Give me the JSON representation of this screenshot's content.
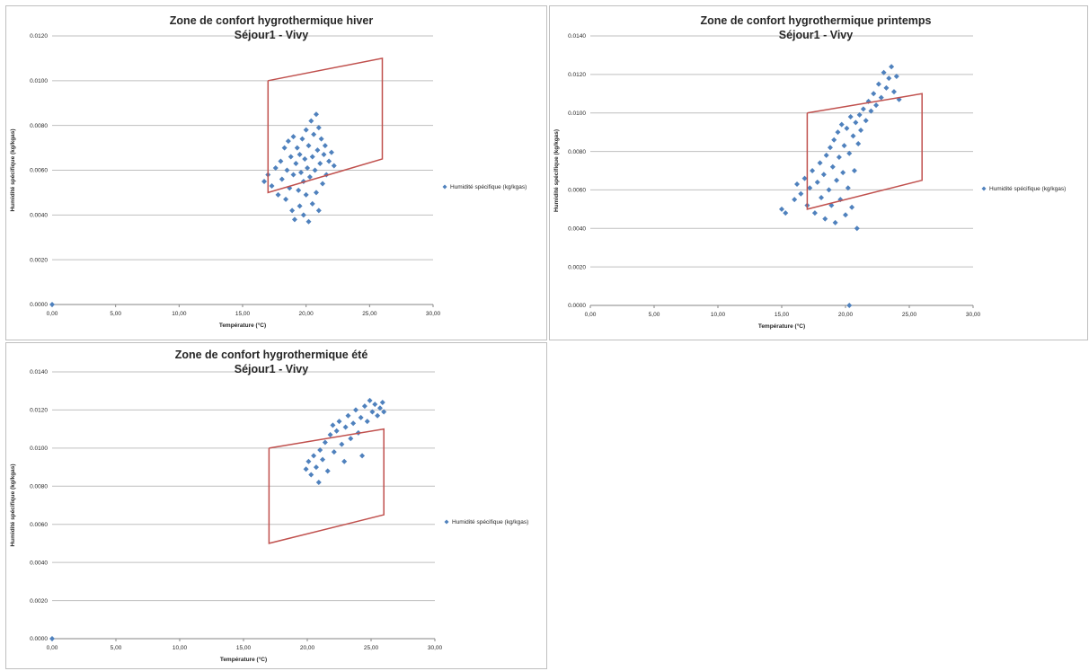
{
  "chart_data": [
    {
      "type": "scatter",
      "title": "Zone de confort hygrothermique hiver",
      "subtitle": "Séjour1 - Vivy",
      "xlabel": "Température (°C)",
      "ylabel": "Humidité spécifique (kg/kgas)",
      "xlim": [
        0,
        30
      ],
      "ylim": [
        0,
        0.012
      ],
      "x_ticks": [
        "0,00",
        "5,00",
        "10,00",
        "15,00",
        "20,00",
        "25,00",
        "30,00"
      ],
      "y_ticks": [
        "0.0000",
        "0.0020",
        "0.0040",
        "0.0060",
        "0.0080",
        "0.0100",
        "0.0120"
      ],
      "grid": true,
      "legend_position": "right",
      "series": [
        {
          "name": "Humidité spécifique (kg/kgas)",
          "color": "#4f81bd",
          "marker": "diamond",
          "points": [
            {
              "x": 0.0,
              "y": 0.0
            },
            {
              "x": 16.7,
              "y": 0.0055
            },
            {
              "x": 17.0,
              "y": 0.0058
            },
            {
              "x": 17.3,
              "y": 0.0053
            },
            {
              "x": 17.6,
              "y": 0.0061
            },
            {
              "x": 17.8,
              "y": 0.0049
            },
            {
              "x": 18.0,
              "y": 0.0064
            },
            {
              "x": 18.1,
              "y": 0.0056
            },
            {
              "x": 18.3,
              "y": 0.007
            },
            {
              "x": 18.4,
              "y": 0.0047
            },
            {
              "x": 18.5,
              "y": 0.006
            },
            {
              "x": 18.6,
              "y": 0.0073
            },
            {
              "x": 18.7,
              "y": 0.0052
            },
            {
              "x": 18.8,
              "y": 0.0066
            },
            {
              "x": 18.9,
              "y": 0.0042
            },
            {
              "x": 19.0,
              "y": 0.0058
            },
            {
              "x": 19.0,
              "y": 0.0075
            },
            {
              "x": 19.1,
              "y": 0.0038
            },
            {
              "x": 19.2,
              "y": 0.0063
            },
            {
              "x": 19.3,
              "y": 0.007
            },
            {
              "x": 19.4,
              "y": 0.0051
            },
            {
              "x": 19.5,
              "y": 0.0067
            },
            {
              "x": 19.5,
              "y": 0.0044
            },
            {
              "x": 19.6,
              "y": 0.0059
            },
            {
              "x": 19.7,
              "y": 0.0074
            },
            {
              "x": 19.8,
              "y": 0.0055
            },
            {
              "x": 19.8,
              "y": 0.004
            },
            {
              "x": 19.9,
              "y": 0.0065
            },
            {
              "x": 20.0,
              "y": 0.0078
            },
            {
              "x": 20.0,
              "y": 0.0049
            },
            {
              "x": 20.1,
              "y": 0.0061
            },
            {
              "x": 20.2,
              "y": 0.0071
            },
            {
              "x": 20.2,
              "y": 0.0037
            },
            {
              "x": 20.3,
              "y": 0.0057
            },
            {
              "x": 20.4,
              "y": 0.0082
            },
            {
              "x": 20.5,
              "y": 0.0066
            },
            {
              "x": 20.5,
              "y": 0.0045
            },
            {
              "x": 20.6,
              "y": 0.0076
            },
            {
              "x": 20.7,
              "y": 0.006
            },
            {
              "x": 20.8,
              "y": 0.0085
            },
            {
              "x": 20.8,
              "y": 0.005
            },
            {
              "x": 20.9,
              "y": 0.0069
            },
            {
              "x": 21.0,
              "y": 0.0079
            },
            {
              "x": 21.0,
              "y": 0.0042
            },
            {
              "x": 21.1,
              "y": 0.0063
            },
            {
              "x": 21.2,
              "y": 0.0074
            },
            {
              "x": 21.3,
              "y": 0.0054
            },
            {
              "x": 21.4,
              "y": 0.0067
            },
            {
              "x": 21.5,
              "y": 0.0071
            },
            {
              "x": 21.6,
              "y": 0.0058
            },
            {
              "x": 21.8,
              "y": 0.0064
            },
            {
              "x": 22.0,
              "y": 0.0068
            },
            {
              "x": 22.2,
              "y": 0.0062
            }
          ]
        },
        {
          "name": "",
          "color": "#c0504d",
          "type": "line",
          "points": [
            {
              "x": 17,
              "y": 0.01
            },
            {
              "x": 26,
              "y": 0.011
            },
            {
              "x": 26,
              "y": 0.0065
            },
            {
              "x": 17,
              "y": 0.005
            },
            {
              "x": 17,
              "y": 0.01
            }
          ]
        }
      ]
    },
    {
      "type": "scatter",
      "title": "Zone de confort hygrothermique printemps",
      "subtitle": "Séjour1 - Vivy",
      "xlabel": "Température (°C)",
      "ylabel": "Humidité spécifique (kg/kgas)",
      "xlim": [
        0,
        30
      ],
      "ylim": [
        0,
        0.014
      ],
      "x_ticks": [
        "0,00",
        "5,00",
        "10,00",
        "15,00",
        "20,00",
        "25,00",
        "30,00"
      ],
      "y_ticks": [
        "0.0000",
        "0.0020",
        "0.0040",
        "0.0060",
        "0.0080",
        "0.0100",
        "0.0120",
        "0.0140"
      ],
      "grid": true,
      "legend_position": "right",
      "series": [
        {
          "name": "Humidité spécifique (kg/kgas)",
          "color": "#4f81bd",
          "marker": "diamond",
          "points": [
            {
              "x": 20.3,
              "y": 0.0
            },
            {
              "x": 15.0,
              "y": 0.005
            },
            {
              "x": 15.3,
              "y": 0.0048
            },
            {
              "x": 16.0,
              "y": 0.0055
            },
            {
              "x": 16.2,
              "y": 0.0063
            },
            {
              "x": 16.5,
              "y": 0.0058
            },
            {
              "x": 16.8,
              "y": 0.0066
            },
            {
              "x": 17.0,
              "y": 0.0052
            },
            {
              "x": 17.2,
              "y": 0.0061
            },
            {
              "x": 17.4,
              "y": 0.007
            },
            {
              "x": 17.6,
              "y": 0.0048
            },
            {
              "x": 17.8,
              "y": 0.0064
            },
            {
              "x": 18.0,
              "y": 0.0074
            },
            {
              "x": 18.1,
              "y": 0.0056
            },
            {
              "x": 18.3,
              "y": 0.0068
            },
            {
              "x": 18.4,
              "y": 0.0045
            },
            {
              "x": 18.5,
              "y": 0.0078
            },
            {
              "x": 18.7,
              "y": 0.006
            },
            {
              "x": 18.8,
              "y": 0.0082
            },
            {
              "x": 18.9,
              "y": 0.0052
            },
            {
              "x": 19.0,
              "y": 0.0072
            },
            {
              "x": 19.1,
              "y": 0.0086
            },
            {
              "x": 19.2,
              "y": 0.0043
            },
            {
              "x": 19.3,
              "y": 0.0065
            },
            {
              "x": 19.4,
              "y": 0.009
            },
            {
              "x": 19.5,
              "y": 0.0077
            },
            {
              "x": 19.6,
              "y": 0.0055
            },
            {
              "x": 19.7,
              "y": 0.0094
            },
            {
              "x": 19.8,
              "y": 0.0069
            },
            {
              "x": 19.9,
              "y": 0.0083
            },
            {
              "x": 20.0,
              "y": 0.0047
            },
            {
              "x": 20.1,
              "y": 0.0092
            },
            {
              "x": 20.2,
              "y": 0.0061
            },
            {
              "x": 20.3,
              "y": 0.0079
            },
            {
              "x": 20.4,
              "y": 0.0098
            },
            {
              "x": 20.5,
              "y": 0.0051
            },
            {
              "x": 20.6,
              "y": 0.0088
            },
            {
              "x": 20.7,
              "y": 0.007
            },
            {
              "x": 20.8,
              "y": 0.0095
            },
            {
              "x": 20.9,
              "y": 0.004
            },
            {
              "x": 21.0,
              "y": 0.0084
            },
            {
              "x": 21.1,
              "y": 0.0099
            },
            {
              "x": 21.2,
              "y": 0.0091
            },
            {
              "x": 21.4,
              "y": 0.0102
            },
            {
              "x": 21.6,
              "y": 0.0096
            },
            {
              "x": 21.8,
              "y": 0.0106
            },
            {
              "x": 22.0,
              "y": 0.0101
            },
            {
              "x": 22.2,
              "y": 0.011
            },
            {
              "x": 22.4,
              "y": 0.0104
            },
            {
              "x": 22.6,
              "y": 0.0115
            },
            {
              "x": 22.8,
              "y": 0.0108
            },
            {
              "x": 23.0,
              "y": 0.0121
            },
            {
              "x": 23.2,
              "y": 0.0113
            },
            {
              "x": 23.4,
              "y": 0.0118
            },
            {
              "x": 23.6,
              "y": 0.0124
            },
            {
              "x": 23.8,
              "y": 0.0111
            },
            {
              "x": 24.0,
              "y": 0.0119
            },
            {
              "x": 24.2,
              "y": 0.0107
            }
          ]
        },
        {
          "name": "",
          "color": "#c0504d",
          "type": "line",
          "points": [
            {
              "x": 17,
              "y": 0.01
            },
            {
              "x": 26,
              "y": 0.011
            },
            {
              "x": 26,
              "y": 0.0065
            },
            {
              "x": 17,
              "y": 0.005
            },
            {
              "x": 17,
              "y": 0.01
            }
          ]
        }
      ]
    },
    {
      "type": "scatter",
      "title": "Zone de confort hygrothermique été",
      "subtitle": "Séjour1 - Vivy",
      "xlabel": "Température (°C)",
      "ylabel": "Humidité spécifique (kg/kgas)",
      "xlim": [
        0,
        30
      ],
      "ylim": [
        0,
        0.014
      ],
      "x_ticks": [
        "0,00",
        "5,00",
        "10,00",
        "15,00",
        "20,00",
        "25,00",
        "30,00"
      ],
      "y_ticks": [
        "0.0000",
        "0.0020",
        "0.0040",
        "0.0060",
        "0.0080",
        "0.0100",
        "0.0120",
        "0.0140"
      ],
      "grid": true,
      "legend_position": "right",
      "series": [
        {
          "name": "Humidité spécifique (kg/kgas)",
          "color": "#4f81bd",
          "marker": "diamond",
          "points": [
            {
              "x": 0.0,
              "y": 0.0
            },
            {
              "x": 19.9,
              "y": 0.0089
            },
            {
              "x": 20.1,
              "y": 0.0093
            },
            {
              "x": 20.3,
              "y": 0.0086
            },
            {
              "x": 20.5,
              "y": 0.0096
            },
            {
              "x": 20.7,
              "y": 0.009
            },
            {
              "x": 20.9,
              "y": 0.0082
            },
            {
              "x": 21.0,
              "y": 0.0099
            },
            {
              "x": 21.2,
              "y": 0.0094
            },
            {
              "x": 21.4,
              "y": 0.0103
            },
            {
              "x": 21.6,
              "y": 0.0088
            },
            {
              "x": 21.8,
              "y": 0.0107
            },
            {
              "x": 22.0,
              "y": 0.0112
            },
            {
              "x": 22.1,
              "y": 0.0098
            },
            {
              "x": 22.3,
              "y": 0.0109
            },
            {
              "x": 22.5,
              "y": 0.0114
            },
            {
              "x": 22.7,
              "y": 0.0102
            },
            {
              "x": 22.9,
              "y": 0.0093
            },
            {
              "x": 23.0,
              "y": 0.0111
            },
            {
              "x": 23.2,
              "y": 0.0117
            },
            {
              "x": 23.4,
              "y": 0.0105
            },
            {
              "x": 23.6,
              "y": 0.0113
            },
            {
              "x": 23.8,
              "y": 0.012
            },
            {
              "x": 24.0,
              "y": 0.0108
            },
            {
              "x": 24.2,
              "y": 0.0116
            },
            {
              "x": 24.3,
              "y": 0.0096
            },
            {
              "x": 24.5,
              "y": 0.0122
            },
            {
              "x": 24.7,
              "y": 0.0114
            },
            {
              "x": 24.9,
              "y": 0.0125
            },
            {
              "x": 25.1,
              "y": 0.0119
            },
            {
              "x": 25.3,
              "y": 0.0123
            },
            {
              "x": 25.5,
              "y": 0.0117
            },
            {
              "x": 25.7,
              "y": 0.0121
            },
            {
              "x": 25.9,
              "y": 0.0124
            },
            {
              "x": 26.0,
              "y": 0.0119
            }
          ]
        },
        {
          "name": "",
          "color": "#c0504d",
          "type": "line",
          "points": [
            {
              "x": 17,
              "y": 0.01
            },
            {
              "x": 26,
              "y": 0.011
            },
            {
              "x": 26,
              "y": 0.0065
            },
            {
              "x": 17,
              "y": 0.005
            },
            {
              "x": 17,
              "y": 0.01
            }
          ]
        }
      ]
    }
  ]
}
